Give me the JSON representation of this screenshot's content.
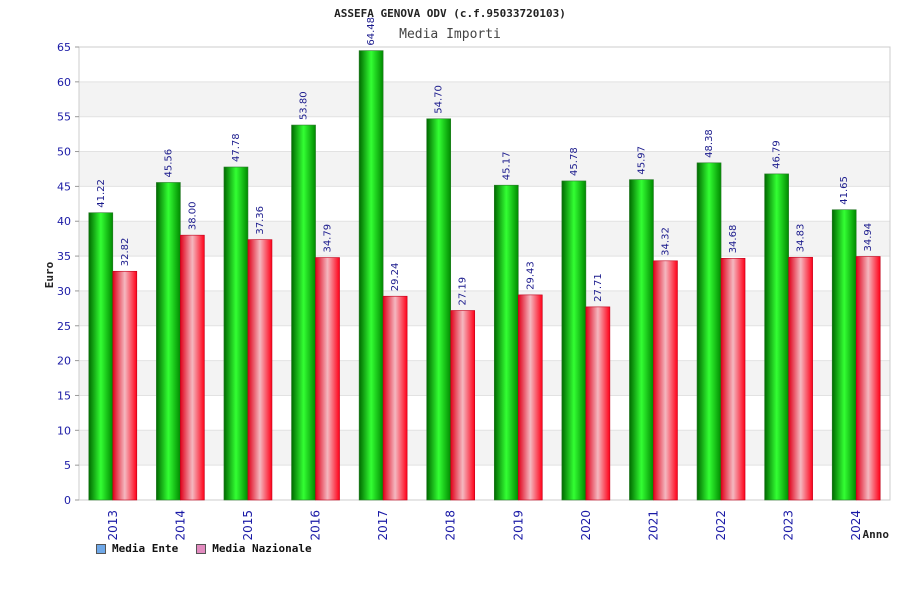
{
  "chart_data": {
    "type": "bar",
    "title": "ASSEFA GENOVA ODV (c.f.95033720103)",
    "subtitle": "Media Importi",
    "xlabel": "Anno",
    "ylabel": "Euro",
    "ylim": [
      0,
      65
    ],
    "yticks": [
      0,
      5,
      10,
      15,
      20,
      25,
      30,
      35,
      40,
      45,
      50,
      55,
      60,
      65
    ],
    "grid": true,
    "legend_position": "bottom-left",
    "categories": [
      "2013",
      "2014",
      "2015",
      "2016",
      "2017",
      "2018",
      "2019",
      "2020",
      "2021",
      "2022",
      "2023",
      "2024"
    ],
    "series": [
      {
        "name": "Media Ente",
        "color": "#00b000",
        "values": [
          41.22,
          45.56,
          47.78,
          53.8,
          64.48,
          54.7,
          45.17,
          45.78,
          45.97,
          48.38,
          46.79,
          41.65
        ]
      },
      {
        "name": "Media Nazionale",
        "color": "#e8001c",
        "values": [
          32.82,
          38.0,
          37.36,
          34.79,
          29.24,
          27.19,
          29.43,
          27.71,
          34.32,
          34.68,
          34.83,
          34.94
        ]
      }
    ],
    "legend_swatch_colors": [
      "#6fa8e8",
      "#e28bbf"
    ]
  }
}
